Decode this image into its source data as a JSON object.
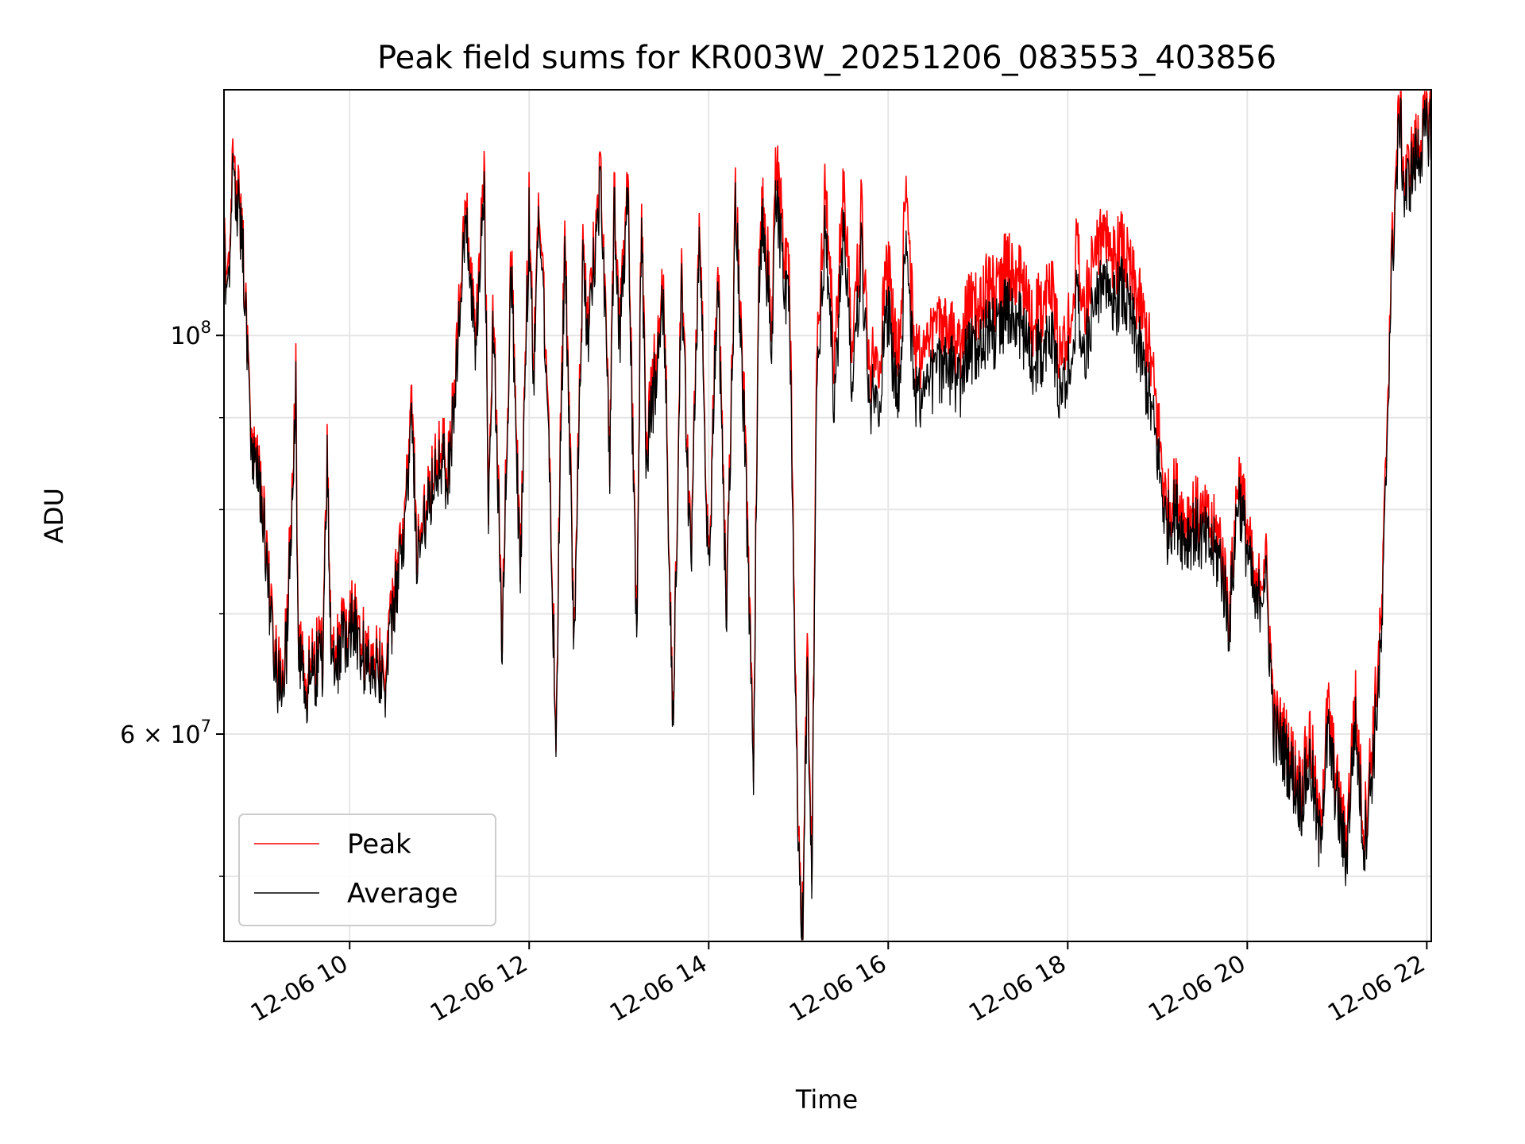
{
  "chart_data": {
    "type": "line",
    "title": "Peak field sums for KR003W_20251206_083553_403856",
    "xlabel": "Time",
    "ylabel": "ADU",
    "yscale": "log",
    "xlim_hours": [
      8.6,
      22.05
    ],
    "ylim": [
      46000000,
      137000000
    ],
    "x_ticks": [
      {
        "hour": 10,
        "label": "12-06 10"
      },
      {
        "hour": 12,
        "label": "12-06 12"
      },
      {
        "hour": 14,
        "label": "12-06 14"
      },
      {
        "hour": 16,
        "label": "12-06 16"
      },
      {
        "hour": 18,
        "label": "12-06 18"
      },
      {
        "hour": 20,
        "label": "12-06 20"
      },
      {
        "hour": 22,
        "label": "12-06 22"
      }
    ],
    "y_major_ticks": [
      {
        "value": 100000000,
        "base": "10",
        "exp": "8",
        "mant": ""
      },
      {
        "value": 60000000,
        "base": "10",
        "exp": "7",
        "mant": "6 × "
      }
    ],
    "y_minor_ticks": [
      50000000,
      70000000,
      80000000,
      90000000
    ],
    "grid": true,
    "legend_position": "lower left",
    "series": [
      {
        "name": "Peak",
        "color": "#ff0000",
        "x": [
          8.6,
          8.65,
          8.7,
          8.75,
          8.8,
          8.9,
          9.0,
          9.1,
          9.2,
          9.3,
          9.4,
          9.42,
          9.5,
          9.6,
          9.7,
          9.75,
          9.8,
          9.9,
          10.0,
          10.1,
          10.2,
          10.3,
          10.4,
          10.5,
          10.6,
          10.7,
          10.75,
          10.8,
          10.9,
          11.0,
          11.1,
          11.2,
          11.3,
          11.4,
          11.5,
          11.55,
          11.6,
          11.7,
          11.8,
          11.9,
          12.0,
          12.05,
          12.1,
          12.2,
          12.3,
          12.35,
          12.4,
          12.5,
          12.6,
          12.65,
          12.7,
          12.8,
          12.9,
          12.95,
          13.0,
          13.1,
          13.2,
          13.25,
          13.3,
          13.4,
          13.5,
          13.6,
          13.7,
          13.8,
          13.9,
          14.0,
          14.1,
          14.2,
          14.3,
          14.4,
          14.5,
          14.55,
          14.6,
          14.7,
          14.75,
          14.8,
          14.9,
          15.0,
          15.05,
          15.1,
          15.15,
          15.2,
          15.3,
          15.4,
          15.5,
          15.6,
          15.7,
          15.8,
          15.9,
          16.0,
          16.1,
          16.2,
          16.3,
          16.4,
          16.5,
          16.6,
          16.7,
          16.8,
          16.9,
          17.0,
          17.1,
          17.2,
          17.3,
          17.4,
          17.5,
          17.6,
          17.7,
          17.8,
          17.9,
          18.0,
          18.1,
          18.2,
          18.3,
          18.4,
          18.5,
          18.6,
          18.7,
          18.8,
          18.9,
          19.0,
          19.1,
          19.2,
          19.3,
          19.4,
          19.5,
          19.6,
          19.7,
          19.8,
          19.9,
          20.0,
          20.1,
          20.2,
          20.3,
          20.4,
          20.5,
          20.6,
          20.7,
          20.8,
          20.9,
          21.0,
          21.1,
          21.2,
          21.3,
          21.4,
          21.5,
          21.6,
          21.7,
          21.75,
          21.8,
          21.9,
          22.0,
          22.05
        ],
        "values": [
          112000000,
          110000000,
          124000000,
          119000000,
          116000000,
          88000000,
          84000000,
          73000000,
          65000000,
          68000000,
          96000000,
          70000000,
          64000000,
          66000000,
          67000000,
          86000000,
          65000000,
          68000000,
          70000000,
          69000000,
          66000000,
          67000000,
          65000000,
          72000000,
          78000000,
          92000000,
          75000000,
          79000000,
          83000000,
          88000000,
          84000000,
          100000000,
          118000000,
          98000000,
          124000000,
          80000000,
          104000000,
          68000000,
          112000000,
          74000000,
          118000000,
          96000000,
          120000000,
          97000000,
          60000000,
          90000000,
          114000000,
          68000000,
          112000000,
          100000000,
          110000000,
          123000000,
          86000000,
          120000000,
          100000000,
          121000000,
          67000000,
          120000000,
          88000000,
          96000000,
          108000000,
          60000000,
          110000000,
          75000000,
          118000000,
          74000000,
          110000000,
          70000000,
          120000000,
          90000000,
          58000000,
          104000000,
          121000000,
          102000000,
          124000000,
          118000000,
          106000000,
          52000000,
          47000000,
          68000000,
          49000000,
          98000000,
          120000000,
          97000000,
          121000000,
          99000000,
          117000000,
          96000000,
          98000000,
          110000000,
          96000000,
          120000000,
          97000000,
          99000000,
          100000000,
          101000000,
          100000000,
          98000000,
          104000000,
          103000000,
          107000000,
          105000000,
          109000000,
          110000000,
          106000000,
          102000000,
          104000000,
          108000000,
          98000000,
          100000000,
          112000000,
          104000000,
          111000000,
          115000000,
          110000000,
          112000000,
          108000000,
          104000000,
          99000000,
          90000000,
          80000000,
          82000000,
          79000000,
          80000000,
          79000000,
          78000000,
          77000000,
          70000000,
          84000000,
          78000000,
          71000000,
          76000000,
          61000000,
          60000000,
          58000000,
          56000000,
          60000000,
          53000000,
          62000000,
          56000000,
          52000000,
          63000000,
          53000000,
          60000000,
          70000000,
          108000000,
          136000000,
          121000000,
          124000000,
          128000000,
          132000000,
          133000000
        ],
        "jitter": 0.05
      },
      {
        "name": "Average",
        "color": "#000000",
        "x": [
          8.6,
          8.65,
          8.7,
          8.75,
          8.8,
          8.9,
          9.0,
          9.1,
          9.2,
          9.3,
          9.4,
          9.42,
          9.5,
          9.6,
          9.7,
          9.75,
          9.8,
          9.9,
          10.0,
          10.1,
          10.2,
          10.3,
          10.4,
          10.5,
          10.6,
          10.7,
          10.75,
          10.8,
          10.9,
          11.0,
          11.1,
          11.2,
          11.3,
          11.4,
          11.5,
          11.55,
          11.6,
          11.7,
          11.8,
          11.9,
          12.0,
          12.05,
          12.1,
          12.2,
          12.3,
          12.35,
          12.4,
          12.5,
          12.6,
          12.65,
          12.7,
          12.8,
          12.9,
          12.95,
          13.0,
          13.1,
          13.2,
          13.25,
          13.3,
          13.4,
          13.5,
          13.6,
          13.7,
          13.8,
          13.9,
          14.0,
          14.1,
          14.2,
          14.3,
          14.4,
          14.5,
          14.55,
          14.6,
          14.7,
          14.75,
          14.8,
          14.9,
          15.0,
          15.05,
          15.1,
          15.15,
          15.2,
          15.3,
          15.4,
          15.5,
          15.6,
          15.7,
          15.8,
          15.9,
          16.0,
          16.1,
          16.2,
          16.3,
          16.4,
          16.5,
          16.6,
          16.7,
          16.8,
          16.9,
          17.0,
          17.1,
          17.2,
          17.3,
          17.4,
          17.5,
          17.6,
          17.7,
          17.8,
          17.9,
          18.0,
          18.1,
          18.2,
          18.3,
          18.4,
          18.5,
          18.6,
          18.7,
          18.8,
          18.9,
          19.0,
          19.1,
          19.2,
          19.3,
          19.4,
          19.5,
          19.6,
          19.7,
          19.8,
          19.9,
          20.0,
          20.1,
          20.2,
          20.3,
          20.4,
          20.5,
          20.6,
          20.7,
          20.8,
          20.9,
          21.0,
          21.1,
          21.2,
          21.3,
          21.4,
          21.5,
          21.6,
          21.7,
          21.75,
          21.8,
          21.9,
          22.0,
          22.05
        ],
        "values": [
          110000000,
          108000000,
          122000000,
          117000000,
          115000000,
          87000000,
          83000000,
          72000000,
          64000000,
          67000000,
          94000000,
          69000000,
          63000000,
          65000000,
          66000000,
          85000000,
          64000000,
          67000000,
          69000000,
          68000000,
          65000000,
          66000000,
          64000000,
          71000000,
          77000000,
          90000000,
          74000000,
          78000000,
          82000000,
          86000000,
          83000000,
          98000000,
          116000000,
          96000000,
          121000000,
          79000000,
          102000000,
          67000000,
          110000000,
          73000000,
          116000000,
          94000000,
          118000000,
          95000000,
          59500000,
          88000000,
          112000000,
          67000000,
          110000000,
          98000000,
          108000000,
          121000000,
          85000000,
          118000000,
          98000000,
          119000000,
          66000000,
          118000000,
          86000000,
          94000000,
          106000000,
          59500000,
          108000000,
          74000000,
          116000000,
          73000000,
          108000000,
          69000000,
          118000000,
          88000000,
          57000000,
          102000000,
          118000000,
          99000000,
          119000000,
          113000000,
          102000000,
          51000000,
          46500000,
          66000000,
          48000000,
          94000000,
          114000000,
          92000000,
          115000000,
          94000000,
          111000000,
          92000000,
          93000000,
          104000000,
          91000000,
          112000000,
          92000000,
          94000000,
          95000000,
          96000000,
          96000000,
          94000000,
          98000000,
          98000000,
          101000000,
          100000000,
          103000000,
          104000000,
          100000000,
          97000000,
          98000000,
          101000000,
          93000000,
          95000000,
          105000000,
          98000000,
          104000000,
          108000000,
          104000000,
          106000000,
          102000000,
          98000000,
          93000000,
          86000000,
          78000000,
          80000000,
          77000000,
          78000000,
          77000000,
          76000000,
          75000000,
          69000000,
          82000000,
          76000000,
          70000000,
          74000000,
          60000000,
          59000000,
          57000000,
          55000000,
          58000000,
          52000000,
          60000000,
          55000000,
          51000000,
          61000000,
          52000000,
          58000000,
          68000000,
          106000000,
          133000000,
          119000000,
          122000000,
          126000000,
          130000000,
          131000000
        ],
        "jitter": 0.05
      }
    ]
  }
}
